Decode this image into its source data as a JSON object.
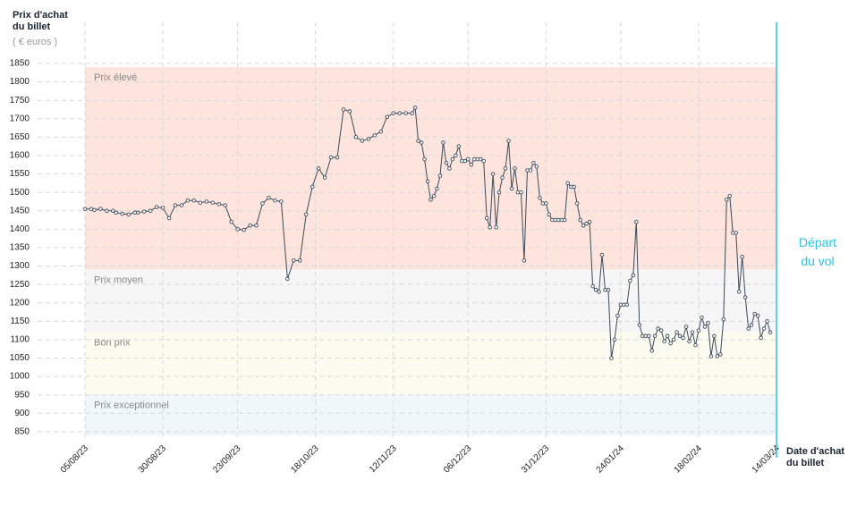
{
  "chart_data": {
    "type": "line",
    "y_title": "Prix d'achat du billet",
    "y_unit": "( € euros )",
    "x_title": "Date d'achat du billet",
    "annotation": {
      "text": "Départ du vol",
      "x": "14/03/24",
      "color": "#29c4e0"
    },
    "bands": [
      {
        "label": "Prix élevé",
        "from": 1290,
        "to": 1840,
        "color": "#fde4dd"
      },
      {
        "label": "Prix moyen",
        "from": 1120,
        "to": 1290,
        "color": "#f6f6f6"
      },
      {
        "label": "Bon prix",
        "from": 950,
        "to": 1120,
        "color": "#fbfbef"
      },
      {
        "label": "Prix exceptionnel",
        "from": 840,
        "to": 950,
        "color": "#eff7fb"
      }
    ],
    "xlim": [
      "05/08/23",
      "14/03/24"
    ],
    "xticks": [
      "05/08/23",
      "30/08/23",
      "23/09/23",
      "18/10/23",
      "12/11/23",
      "06/12/23",
      "31/12/23",
      "24/01/24",
      "18/02/24",
      "14/03/24"
    ],
    "ylim": [
      840,
      1850
    ],
    "yticks": [
      850,
      900,
      950,
      1000,
      1050,
      1100,
      1150,
      1200,
      1250,
      1300,
      1350,
      1400,
      1450,
      1500,
      1550,
      1600,
      1650,
      1700,
      1750,
      1800,
      1850
    ],
    "grid": true,
    "x": [
      "05/08/23",
      "07/08/23",
      "08/08/23",
      "10/08/23",
      "12/08/23",
      "14/08/23",
      "15/08/23",
      "17/08/23",
      "19/08/23",
      "21/08/23",
      "22/08/23",
      "24/08/23",
      "26/08/23",
      "28/08/23",
      "30/08/23",
      "01/09/23",
      "03/09/23",
      "05/09/23",
      "07/09/23",
      "09/09/23",
      "11/09/23",
      "13/09/23",
      "15/09/23",
      "17/09/23",
      "19/09/23",
      "21/09/23",
      "23/09/23",
      "25/09/23",
      "27/09/23",
      "29/09/23",
      "01/10/23",
      "03/10/23",
      "05/10/23",
      "07/10/23",
      "09/10/23",
      "11/10/23",
      "13/10/23",
      "15/10/23",
      "17/10/23",
      "19/10/23",
      "21/10/23",
      "23/10/23",
      "25/10/23",
      "27/10/23",
      "29/10/23",
      "31/10/23",
      "02/11/23",
      "04/11/23",
      "06/11/23",
      "08/11/23",
      "10/11/23",
      "12/11/23",
      "14/11/23",
      "16/11/23",
      "18/11/23",
      "19/11/23",
      "20/11/23",
      "21/11/23",
      "22/11/23",
      "23/11/23",
      "24/11/23",
      "25/11/23",
      "26/11/23",
      "27/11/23",
      "28/11/23",
      "29/11/23",
      "30/11/23",
      "01/12/23",
      "02/12/23",
      "03/12/23",
      "04/12/23",
      "05/12/23",
      "06/12/23",
      "07/12/23",
      "08/12/23",
      "09/12/23",
      "10/12/23",
      "11/12/23",
      "12/12/23",
      "13/12/23",
      "14/12/23",
      "15/12/23",
      "16/12/23",
      "17/12/23",
      "18/12/23",
      "19/12/23",
      "20/12/23",
      "21/12/23",
      "22/12/23",
      "23/12/23",
      "24/12/23",
      "25/12/23",
      "26/12/23",
      "27/12/23",
      "28/12/23",
      "29/12/23",
      "30/12/23",
      "31/12/23",
      "01/01/24",
      "02/01/24",
      "03/01/24",
      "04/01/24",
      "05/01/24",
      "06/01/24",
      "07/01/24",
      "08/01/24",
      "09/01/24",
      "10/01/24",
      "11/01/24",
      "12/01/24",
      "13/01/24",
      "14/01/24",
      "15/01/24",
      "16/01/24",
      "17/01/24",
      "18/01/24",
      "19/01/24",
      "20/01/24",
      "21/01/24",
      "22/01/24",
      "23/01/24",
      "24/01/24",
      "25/01/24",
      "26/01/24",
      "27/01/24",
      "28/01/24",
      "29/01/24",
      "30/01/24",
      "31/01/24",
      "01/02/24",
      "02/02/24",
      "03/02/24",
      "04/02/24",
      "05/02/24",
      "06/02/24",
      "07/02/24",
      "08/02/24",
      "09/02/24",
      "10/02/24",
      "11/02/24",
      "12/02/24",
      "13/02/24",
      "14/02/24",
      "15/02/24",
      "16/02/24",
      "17/02/24",
      "18/02/24",
      "19/02/24",
      "20/02/24",
      "21/02/24",
      "22/02/24",
      "23/02/24",
      "24/02/24",
      "25/02/24",
      "26/02/24",
      "27/02/24",
      "28/02/24",
      "29/02/24",
      "01/03/24",
      "02/03/24",
      "03/03/24",
      "04/03/24",
      "05/03/24",
      "06/03/24",
      "07/03/24",
      "08/03/24",
      "09/03/24",
      "10/03/24",
      "11/03/24",
      "12/03/24"
    ],
    "color": "#3b4a5c",
    "values": [
      1455,
      1455,
      1452,
      1455,
      1450,
      1450,
      1445,
      1442,
      1440,
      1445,
      1445,
      1448,
      1450,
      1460,
      1458,
      1430,
      1465,
      1465,
      1478,
      1478,
      1472,
      1475,
      1472,
      1468,
      1465,
      1420,
      1400,
      1398,
      1410,
      1410,
      1470,
      1485,
      1478,
      1475,
      1265,
      1315,
      1315,
      1440,
      1515,
      1565,
      1540,
      1595,
      1595,
      1725,
      1720,
      1650,
      1640,
      1645,
      1655,
      1665,
      1705,
      1715,
      1715,
      1715,
      1715,
      1730,
      1640,
      1635,
      1590,
      1530,
      1480,
      1490,
      1510,
      1545,
      1635,
      1580,
      1565,
      1590,
      1600,
      1625,
      1585,
      1585,
      1590,
      1575,
      1590,
      1590,
      1590,
      1585,
      1430,
      1405,
      1550,
      1405,
      1500,
      1540,
      1565,
      1640,
      1510,
      1565,
      1500,
      1500,
      1315,
      1560,
      1560,
      1580,
      1570,
      1485,
      1470,
      1470,
      1440,
      1425,
      1425,
      1425,
      1425,
      1425,
      1525,
      1515,
      1515,
      1470,
      1425,
      1410,
      1415,
      1420,
      1245,
      1235,
      1230,
      1330,
      1235,
      1235,
      1050,
      1100,
      1165,
      1195,
      1195,
      1195,
      1260,
      1275,
      1420,
      1140,
      1110,
      1110,
      1110,
      1070,
      1110,
      1130,
      1125,
      1095,
      1110,
      1090,
      1100,
      1120,
      1110,
      1105,
      1135,
      1095,
      1120,
      1085,
      1125,
      1160,
      1135,
      1145,
      1055,
      1110,
      1055,
      1060,
      1155,
      1480,
      1490,
      1390,
      1390,
      1230,
      1325,
      1215,
      1130,
      1140,
      1170,
      1165,
      1105,
      1130,
      1150,
      1120
    ]
  }
}
